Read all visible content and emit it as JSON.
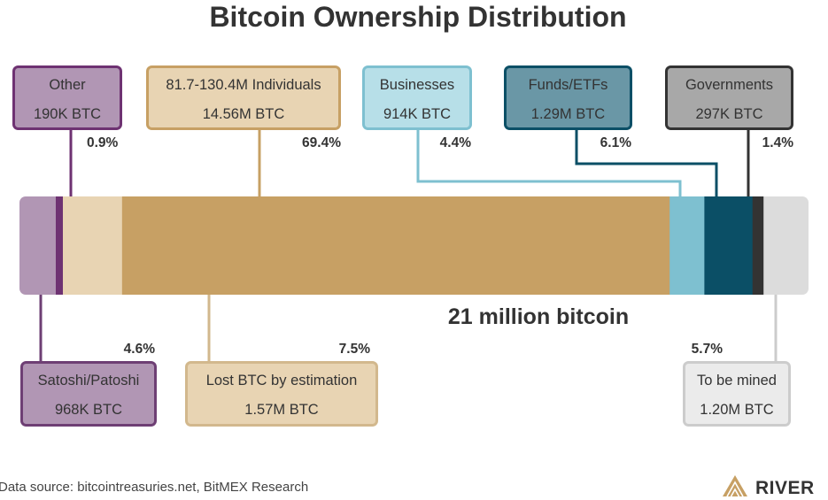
{
  "chart_data": {
    "type": "bar",
    "title": "Bitcoin Ownership Distribution",
    "total_label": "21 million bitcoin",
    "segments": [
      {
        "key": "satoshi",
        "label": "Satoshi/Patoshi",
        "value_label": "968K BTC",
        "percent": 4.6,
        "percent_label": "4.6%",
        "color": "#B196B4",
        "box_fill": "#B196B4",
        "box_border": "#6E3F74",
        "position": "below"
      },
      {
        "key": "other",
        "label": "Other",
        "value_label": "190K BTC",
        "percent": 0.9,
        "percent_label": "0.9%",
        "color": "#6E3272",
        "box_fill": "#B196B4",
        "box_border": "#6E3272",
        "position": "above"
      },
      {
        "key": "lost",
        "label": "Lost BTC by estimation",
        "value_label": "1.57M BTC",
        "percent": 7.5,
        "percent_label": "7.5%",
        "color": "#E8D4B3",
        "box_fill": "#E8D4B3",
        "box_border": "#D2B88D",
        "position": "below"
      },
      {
        "key": "individuals",
        "label": "81.7-130.4M Individuals",
        "value_label": "14.56M BTC",
        "percent": 69.4,
        "percent_label": "69.4%",
        "color": "#C7A064",
        "box_fill": "#E8D4B3",
        "box_border": "#C7A064",
        "position": "above"
      },
      {
        "key": "businesses",
        "label": "Businesses",
        "value_label": "914K BTC",
        "percent": 4.4,
        "percent_label": "4.4%",
        "color": "#7EC0D0",
        "box_fill": "#B7DFE8",
        "box_border": "#7EC0D0",
        "position": "above"
      },
      {
        "key": "funds",
        "label": "Funds/ETFs",
        "value_label": "1.29M BTC",
        "percent": 6.1,
        "percent_label": "6.1%",
        "color": "#0B4F66",
        "box_fill": "#6A97A6",
        "box_border": "#0B4F66",
        "position": "above"
      },
      {
        "key": "governments",
        "label": "Governments",
        "value_label": "297K BTC",
        "percent": 1.4,
        "percent_label": "1.4%",
        "color": "#333333",
        "box_fill": "#A8A8A8",
        "box_border": "#333333",
        "position": "above"
      },
      {
        "key": "tobemined",
        "label": "To be mined",
        "value_label": "1.20M BTC",
        "percent": 5.7,
        "percent_label": "5.7%",
        "color": "#DCDCDC",
        "box_fill": "#EBEBEB",
        "box_border": "#CCCCCC",
        "position": "below"
      }
    ]
  },
  "footer": {
    "source": "Data source: bitcointreasuries.net, BitMEX Research",
    "brand": "RIVER"
  },
  "icons": {
    "brand_logo": "river-mountain-icon"
  }
}
